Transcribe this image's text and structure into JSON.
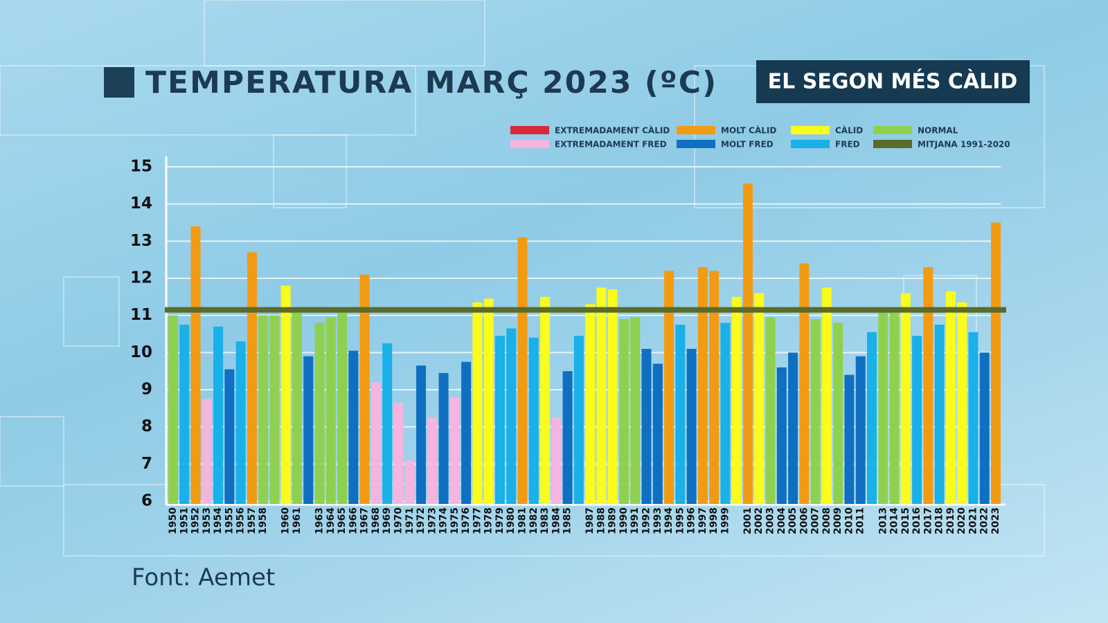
{
  "chart_data": {
    "type": "bar",
    "title": "TEMPERATURA MARÇ 2023 (ºC)",
    "badge": "EL SEGON MÉS CÀLID",
    "source": "Font: Aemet",
    "categories": [
      "1950",
      "1951",
      "1952",
      "1953",
      "1954",
      "1955",
      "1956",
      "1957",
      "1958",
      null,
      "1960",
      "1961",
      null,
      "1963",
      "1964",
      "1965",
      "1966",
      "1967",
      "1968",
      "1969",
      "1970",
      "1971",
      "1972",
      "1973",
      "1974",
      "1975",
      "1976",
      "1977",
      "1978",
      "1979",
      "1980",
      "1981",
      "1982",
      "1983",
      "1984",
      "1985",
      null,
      "1987",
      "1988",
      "1989",
      "1990",
      "1991",
      "1992",
      "1993",
      "1994",
      "1995",
      "1996",
      "1997",
      "1998",
      "1999",
      null,
      "2001",
      "2002",
      "2003",
      "2004",
      "2005",
      "2006",
      "2007",
      "2008",
      "2009",
      "2010",
      "2011",
      null,
      "2013",
      "2014",
      "2015",
      "2016",
      "2017",
      "2018",
      "2019",
      "2020",
      "2021",
      "2022",
      "2023"
    ],
    "values": [
      11.0,
      10.75,
      13.4,
      8.75,
      10.7,
      9.55,
      10.3,
      12.7,
      11.0,
      11.0,
      11.8,
      11.1,
      9.9,
      10.8,
      10.95,
      11.1,
      10.05,
      12.1,
      9.2,
      10.25,
      8.65,
      7.1,
      9.65,
      8.25,
      9.45,
      8.8,
      9.75,
      11.35,
      11.45,
      10.45,
      10.65,
      13.1,
      10.4,
      11.5,
      8.25,
      9.5,
      10.45,
      11.3,
      11.75,
      11.7,
      10.9,
      10.95,
      10.1,
      9.7,
      12.2,
      10.75,
      10.1,
      12.3,
      12.2,
      10.8,
      11.5,
      14.55,
      11.6,
      10.95,
      9.6,
      10.0,
      12.4,
      10.9,
      11.75,
      10.8,
      9.4,
      9.9,
      10.55,
      11.1,
      11.1,
      11.6,
      10.45,
      12.3,
      10.75,
      11.65,
      11.35,
      10.55,
      10.0,
      13.5
    ],
    "colors": [
      "#8fd14f",
      "#1ab0e8",
      "#f29b12",
      "#f5b5df",
      "#1ab0e8",
      "#0f6fc1",
      "#1ab0e8",
      "#f29b12",
      "#8fd14f",
      "#8fd14f",
      "#fbfb1c",
      "#8fd14f",
      "#0f6fc1",
      "#8fd14f",
      "#8fd14f",
      "#8fd14f",
      "#0f6fc1",
      "#f29b12",
      "#f5b5df",
      "#1ab0e8",
      "#f5b5df",
      "#f5b5df",
      "#0f6fc1",
      "#f5b5df",
      "#0f6fc1",
      "#f5b5df",
      "#0f6fc1",
      "#fbfb1c",
      "#fbfb1c",
      "#1ab0e8",
      "#1ab0e8",
      "#f29b12",
      "#1ab0e8",
      "#fbfb1c",
      "#f5b5df",
      "#0f6fc1",
      "#1ab0e8",
      "#fbfb1c",
      "#fbfb1c",
      "#fbfb1c",
      "#8fd14f",
      "#8fd14f",
      "#0f6fc1",
      "#0f6fc1",
      "#f29b12",
      "#1ab0e8",
      "#0f6fc1",
      "#f29b12",
      "#f29b12",
      "#1ab0e8",
      "#fbfb1c",
      "#f29b12",
      "#fbfb1c",
      "#8fd14f",
      "#0f6fc1",
      "#0f6fc1",
      "#f29b12",
      "#8fd14f",
      "#fbfb1c",
      "#8fd14f",
      "#0f6fc1",
      "#0f6fc1",
      "#1ab0e8",
      "#8fd14f",
      "#8fd14f",
      "#fbfb1c",
      "#1ab0e8",
      "#f29b12",
      "#1ab0e8",
      "#fbfb1c",
      "#fbfb1c",
      "#1ab0e8",
      "#0f6fc1",
      "#f29b12"
    ],
    "legend": [
      {
        "name": "EXTREMADAMENT CÀLID",
        "color": "#d8283a"
      },
      {
        "name": "EXTREMADAMENT FRED",
        "color": "#f5b5df"
      },
      {
        "name": "MOLT CÀLID",
        "color": "#f29b12"
      },
      {
        "name": "MOLT FRED",
        "color": "#0f6fc1"
      },
      {
        "name": "CÀLID",
        "color": "#fbfb1c"
      },
      {
        "name": "FRED",
        "color": "#1ab0e8"
      },
      {
        "name": "NORMAL",
        "color": "#8fd14f"
      }
    ],
    "mean": {
      "name": "MITJANA 1991-2020",
      "value": 11.15,
      "color": "#5a6b2a"
    },
    "ylim": [
      6,
      15
    ],
    "yticks": [
      6,
      7,
      8,
      9,
      10,
      11,
      12,
      13,
      14,
      15
    ],
    "grid": true
  }
}
